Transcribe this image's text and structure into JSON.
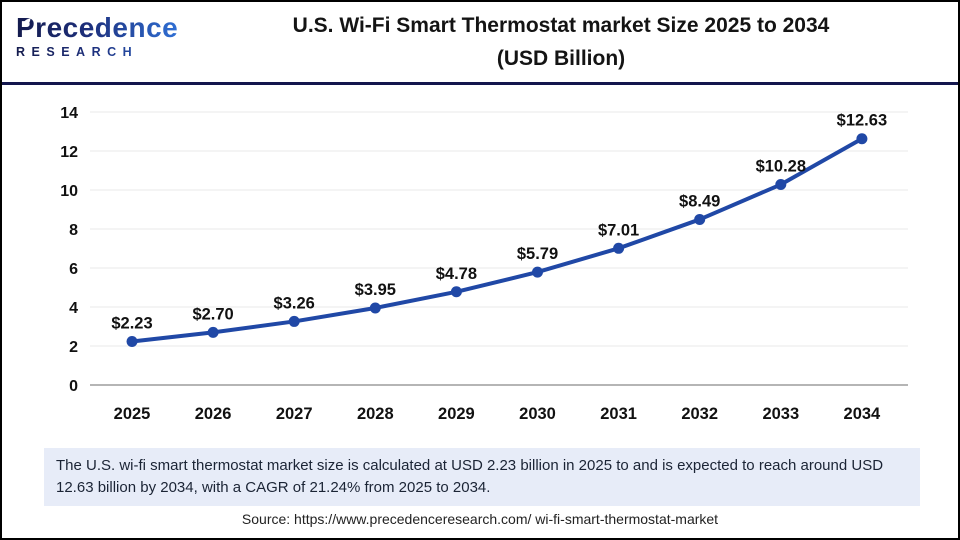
{
  "header": {
    "logo": {
      "name": "Precedence",
      "subtitle": "RESEARCH"
    },
    "title_line1": "U.S. Wi-Fi Smart Thermostat market Size 2025 to 2034",
    "title_line2": "(USD Billion)"
  },
  "chart_data": {
    "type": "line",
    "title": "U.S. Wi-Fi Smart Thermostat market Size 2025 to 2034 (USD Billion)",
    "categories": [
      "2025",
      "2026",
      "2027",
      "2028",
      "2029",
      "2030",
      "2031",
      "2032",
      "2033",
      "2034"
    ],
    "series": [
      {
        "name": "U.S. Wi-Fi Smart Thermostat Market Size (USD Billion)",
        "values": [
          2.23,
          2.7,
          3.26,
          3.95,
          4.78,
          5.79,
          7.01,
          8.49,
          10.28,
          12.63
        ]
      }
    ],
    "point_labels": [
      "$2.23",
      "$2.70",
      "$3.26",
      "$3.95",
      "$4.78",
      "$5.79",
      "$7.01",
      "$8.49",
      "$10.28",
      "$12.63"
    ],
    "xlabel": "",
    "ylabel": "",
    "ylim": [
      0,
      14
    ],
    "yticks": [
      0,
      2,
      4,
      6,
      8,
      10,
      12,
      14
    ],
    "grid": true,
    "legend": false,
    "line_color": "#2048a6"
  },
  "footer": {
    "note": "The U.S. wi-fi smart thermostat market  size is calculated at USD 2.23 billion in 2025 to and is expected to reach around USD 12.63 billion by 2034, with a CAGR of 21.24% from 2025 to 2034.",
    "source": "Source: https://www.precedenceresearch.com/ wi-fi-smart-thermostat-market"
  },
  "colors": {
    "logo_navy": "#141b4d",
    "logo_blue": "#2f6fd4",
    "separator_navy": "#13164d",
    "note_background": "#e7ecf8"
  }
}
